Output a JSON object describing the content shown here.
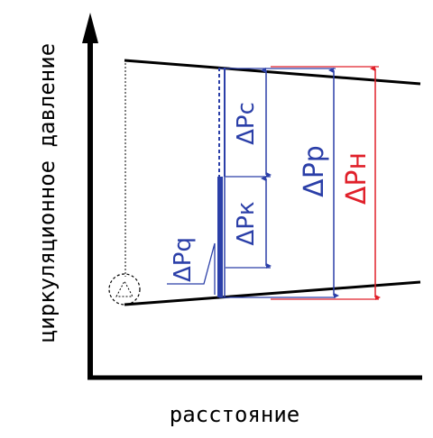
{
  "axes": {
    "y_label": "циркуляционное давление",
    "x_label": "расстояние"
  },
  "labels": {
    "dp_c": "ΔPc",
    "dp_k": "ΔPк",
    "dp_q": "ΔPq",
    "dp_p": "ΔPp",
    "dp_h": "ΔPн"
  },
  "colors": {
    "line": "#000000",
    "blue": "#2b3fa8",
    "red": "#e0202a"
  }
}
